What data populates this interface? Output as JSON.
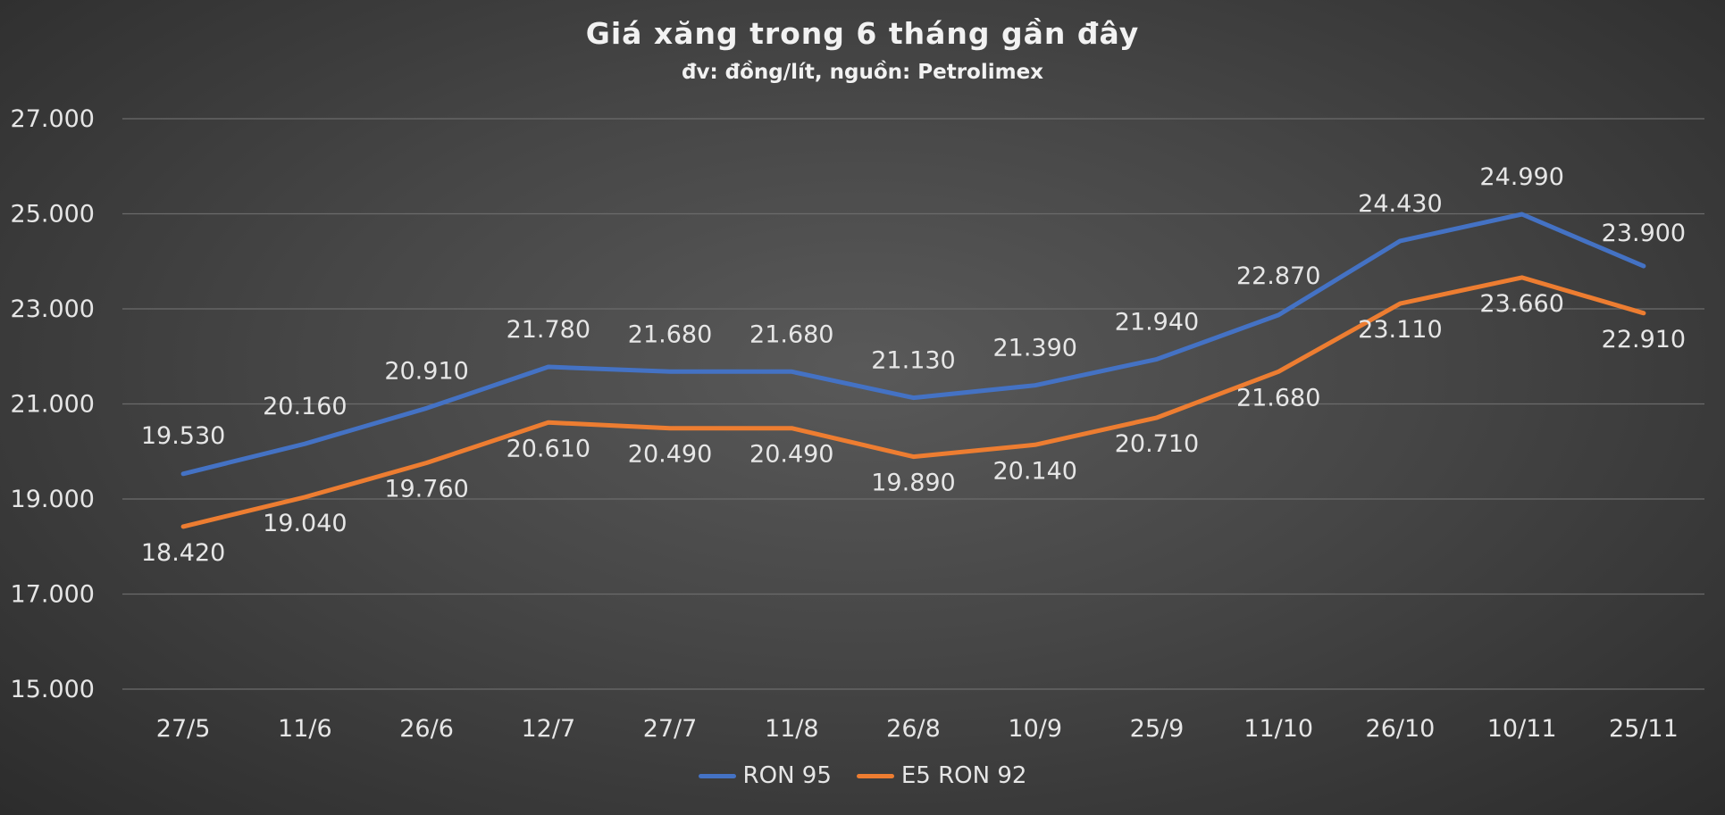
{
  "chart_data": {
    "type": "line",
    "title": "Giá xăng trong 6 tháng gần đây",
    "subtitle": "đv: đồng/lít, nguồn: Petrolimex",
    "categories": [
      "27/5",
      "11/6",
      "26/6",
      "12/7",
      "27/7",
      "11/8",
      "26/8",
      "10/9",
      "25/9",
      "11/10",
      "26/10",
      "10/11",
      "25/11"
    ],
    "series": [
      {
        "name": "RON 95",
        "color": "#4472c4",
        "values": [
          19530,
          20160,
          20910,
          21780,
          21680,
          21680,
          21130,
          21390,
          21940,
          22870,
          24430,
          24990,
          23900
        ],
        "labels": [
          "19.530",
          "20.160",
          "20.910",
          "21.780",
          "21.680",
          "21.680",
          "21.130",
          "21.390",
          "21.940",
          "22.870",
          "24.430",
          "24.990",
          "23.900"
        ]
      },
      {
        "name": "E5 RON 92",
        "color": "#ed7d31",
        "values": [
          18420,
          19040,
          19760,
          20610,
          20490,
          20490,
          19890,
          20140,
          20710,
          21680,
          23110,
          23660,
          22910
        ],
        "labels": [
          "18.420",
          "19.040",
          "19.760",
          "20.610",
          "20.490",
          "20.490",
          "19.890",
          "20.140",
          "20.710",
          "21.680",
          "23.110",
          "23.660",
          "22.910"
        ]
      }
    ],
    "yticks": [
      "15.000",
      "17.000",
      "19.000",
      "21.000",
      "23.000",
      "25.000",
      "27.000"
    ],
    "ylim": [
      15000,
      27000
    ],
    "ytick_step": 2000,
    "grid": true,
    "legend_position": "bottom"
  }
}
